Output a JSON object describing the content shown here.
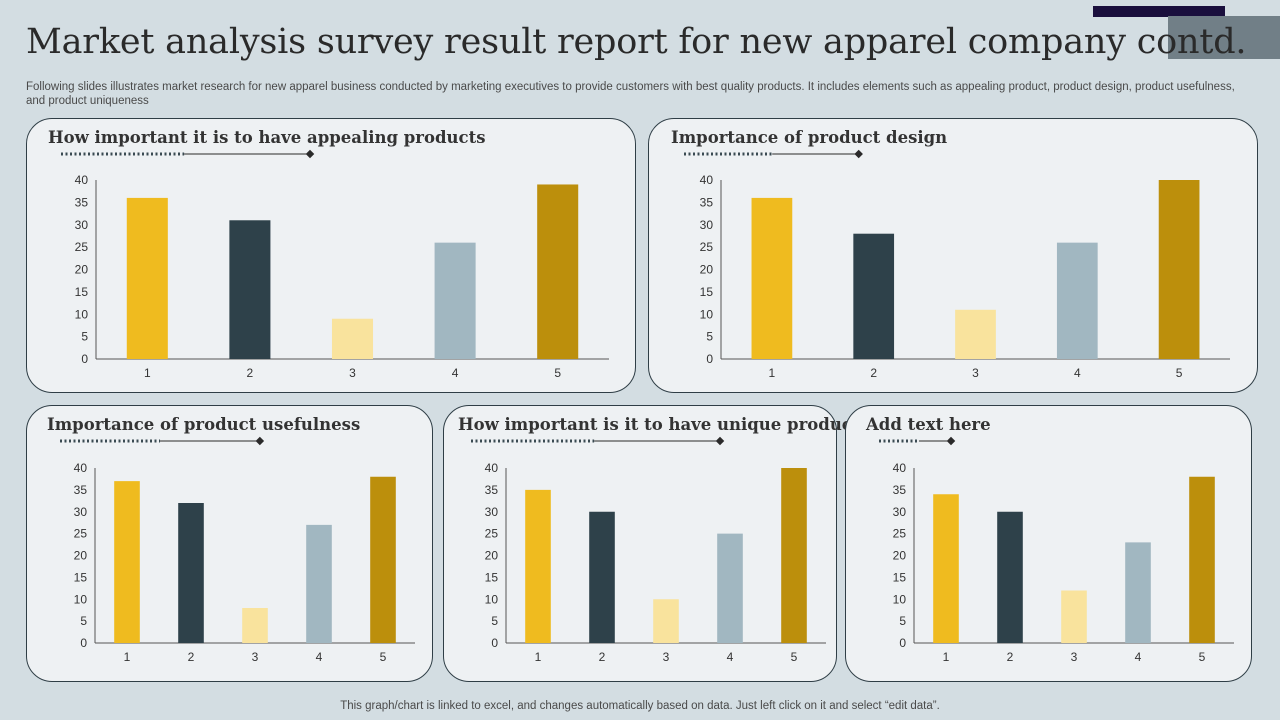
{
  "page": {
    "title": "Market analysis survey result report for new apparel company contd.",
    "subtitle": "Following slides illustrates market research for new apparel business conducted by marketing executives to  provide customers with best quality products. It includes elements such as appealing product, product design, product usefulness, and product uniqueness",
    "footer": "This graph/chart is linked to excel,  and changes automatically based on data. Just left click on it and select “edit data”."
  },
  "colors": {
    "background": "#d3dde2",
    "panel": "#eef1f3",
    "border": "#2f3e46",
    "bars": [
      "#efbb1f",
      "#2e414a",
      "#f9e39d",
      "#a1b7c1",
      "#bc8f0c"
    ]
  },
  "chart_data": [
    {
      "type": "bar",
      "title": "How  important it is to have appealing products",
      "categories": [
        "1",
        "2",
        "3",
        "4",
        "5"
      ],
      "values": [
        36,
        31,
        9,
        26,
        39
      ],
      "ylim": [
        0,
        40
      ],
      "yticks": [
        0,
        5,
        10,
        15,
        20,
        25,
        30,
        35,
        40
      ],
      "grid": false,
      "xlabel": "",
      "ylabel": ""
    },
    {
      "type": "bar",
      "title": "Importance of product design",
      "categories": [
        "1",
        "2",
        "3",
        "4",
        "5"
      ],
      "values": [
        36,
        28,
        11,
        26,
        40
      ],
      "ylim": [
        0,
        40
      ],
      "yticks": [
        0,
        5,
        10,
        15,
        20,
        25,
        30,
        35,
        40
      ],
      "grid": false,
      "xlabel": "",
      "ylabel": ""
    },
    {
      "type": "bar",
      "title": "Importance of product usefulness",
      "categories": [
        "1",
        "2",
        "3",
        "4",
        "5"
      ],
      "values": [
        37,
        32,
        8,
        27,
        38
      ],
      "ylim": [
        0,
        40
      ],
      "yticks": [
        0,
        5,
        10,
        15,
        20,
        25,
        30,
        35,
        40
      ],
      "grid": false,
      "xlabel": "",
      "ylabel": ""
    },
    {
      "type": "bar",
      "title": "How  important is it to have unique product",
      "categories": [
        "1",
        "2",
        "3",
        "4",
        "5"
      ],
      "values": [
        35,
        30,
        10,
        25,
        40
      ],
      "ylim": [
        0,
        40
      ],
      "yticks": [
        0,
        5,
        10,
        15,
        20,
        25,
        30,
        35,
        40
      ],
      "grid": false,
      "xlabel": "",
      "ylabel": ""
    },
    {
      "type": "bar",
      "title": "Add text here",
      "categories": [
        "1",
        "2",
        "3",
        "4",
        "5"
      ],
      "values": [
        34,
        30,
        12,
        23,
        38
      ],
      "ylim": [
        0,
        40
      ],
      "yticks": [
        0,
        5,
        10,
        15,
        20,
        25,
        30,
        35,
        40
      ],
      "grid": false,
      "xlabel": "",
      "ylabel": ""
    }
  ]
}
